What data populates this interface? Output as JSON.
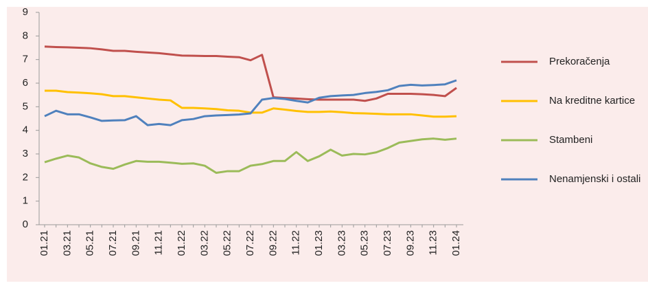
{
  "chart_data": {
    "type": "line",
    "categories": [
      "01.21",
      null,
      "03.21",
      null,
      "05.21",
      null,
      "07.21",
      null,
      "09.21",
      null,
      "11.21",
      null,
      "01.22",
      null,
      "03.22",
      null,
      "05.22",
      null,
      "07.22",
      null,
      "09.22",
      null,
      "11.22",
      null,
      "01.23",
      null,
      "03.23",
      null,
      "05.23",
      null,
      "07.23",
      null,
      "09.23",
      null,
      "11.23",
      null,
      "01.24"
    ],
    "series": [
      {
        "name": "Prekoračenja",
        "color": "#c0504d",
        "values": [
          7.55,
          7.53,
          7.52,
          7.5,
          7.48,
          7.43,
          7.37,
          7.37,
          7.33,
          7.3,
          7.27,
          7.22,
          7.17,
          7.16,
          7.15,
          7.15,
          7.12,
          7.1,
          6.97,
          7.2,
          5.4,
          5.37,
          5.35,
          5.32,
          5.3,
          5.3,
          5.3,
          5.3,
          5.25,
          5.35,
          5.55,
          5.55,
          5.55,
          5.53,
          5.5,
          5.45,
          5.8
        ]
      },
      {
        "name": "Na kreditne kartice",
        "color": "#ffc000",
        "values": [
          5.68,
          5.68,
          5.62,
          5.6,
          5.57,
          5.53,
          5.45,
          5.45,
          5.4,
          5.35,
          5.3,
          5.27,
          4.95,
          4.95,
          4.93,
          4.9,
          4.85,
          4.83,
          4.75,
          4.75,
          4.93,
          4.88,
          4.82,
          4.78,
          4.78,
          4.8,
          4.77,
          4.73,
          4.72,
          4.7,
          4.68,
          4.68,
          4.68,
          4.63,
          4.58,
          4.58,
          4.6
        ]
      },
      {
        "name": "Stambeni",
        "color": "#9bbb59",
        "values": [
          2.65,
          2.8,
          2.93,
          2.85,
          2.6,
          2.45,
          2.37,
          2.55,
          2.7,
          2.67,
          2.67,
          2.63,
          2.58,
          2.6,
          2.5,
          2.2,
          2.27,
          2.27,
          2.5,
          2.57,
          2.7,
          2.7,
          3.08,
          2.7,
          2.9,
          3.18,
          2.93,
          3.0,
          2.98,
          3.07,
          3.25,
          3.48,
          3.55,
          3.62,
          3.65,
          3.6,
          3.65
        ]
      },
      {
        "name": "Nenamjenski i ostali",
        "color": "#4f81bd",
        "values": [
          4.6,
          4.83,
          4.68,
          4.68,
          4.55,
          4.4,
          4.42,
          4.43,
          4.6,
          4.22,
          4.27,
          4.22,
          4.43,
          4.48,
          4.6,
          4.63,
          4.65,
          4.67,
          4.72,
          5.3,
          5.37,
          5.33,
          5.25,
          5.18,
          5.38,
          5.45,
          5.48,
          5.5,
          5.58,
          5.63,
          5.7,
          5.88,
          5.93,
          5.9,
          5.92,
          5.95,
          6.12
        ]
      }
    ],
    "ylim": [
      0,
      9
    ],
    "yticks": [
      0,
      1,
      2,
      3,
      4,
      5,
      6,
      7,
      8,
      9
    ],
    "grid": false,
    "legend": "right"
  }
}
